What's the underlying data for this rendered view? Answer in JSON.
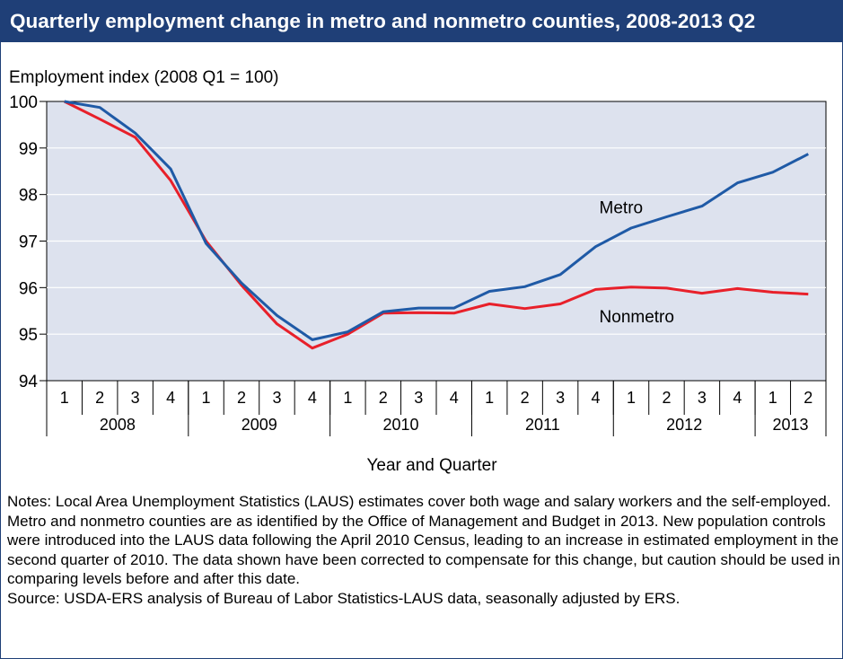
{
  "title": "Quarterly employment change in metro and nonmetro counties, 2008-2013 Q2",
  "notes": "Notes: Local Area Unemployment Statistics (LAUS) estimates cover both wage and salary workers and the self-employed. Metro and nonmetro counties are as identified by the Office of Management and Budget in 2013. New population controls were introduced into the LAUS data following the April 2010 Census, leading to an increase in estimated employment in the second quarter of 2010. The data shown have been corrected to compensate for this change, but caution should be used in comparing levels before and after this date.",
  "source": "Source: USDA-ERS analysis of Bureau of Labor Statistics-LAUS data, seasonally adjusted by ERS.",
  "colors": {
    "title_bg": "#1f3f77",
    "plot_bg": "#dde2ee",
    "metro": "#1f5aa6",
    "nonmetro": "#e8202a"
  },
  "chart_data": {
    "type": "line",
    "ylabel": "Employment index (2008 Q1 = 100)",
    "xlabel": "Year and Quarter",
    "ylim": [
      94,
      100
    ],
    "yticks": [
      94,
      95,
      96,
      97,
      98,
      99,
      100
    ],
    "grid": true,
    "quarters": [
      "1",
      "2",
      "3",
      "4",
      "1",
      "2",
      "3",
      "4",
      "1",
      "2",
      "3",
      "4",
      "1",
      "2",
      "3",
      "4",
      "1",
      "2",
      "3",
      "4",
      "1",
      "2"
    ],
    "years": [
      {
        "label": "2008",
        "count": 4
      },
      {
        "label": "2009",
        "count": 4
      },
      {
        "label": "2010",
        "count": 4
      },
      {
        "label": "2011",
        "count": 4
      },
      {
        "label": "2012",
        "count": 4
      },
      {
        "label": "2013",
        "count": 2
      }
    ],
    "series": [
      {
        "name": "Metro",
        "values": [
          100.0,
          99.87,
          99.32,
          98.55,
          96.95,
          96.1,
          95.4,
          94.88,
          95.05,
          95.48,
          95.56,
          95.56,
          95.92,
          96.02,
          96.28,
          96.88,
          97.28,
          97.52,
          97.75,
          98.25,
          98.48,
          98.87
        ]
      },
      {
        "name": "Nonmetro",
        "values": [
          100.0,
          99.62,
          99.23,
          98.3,
          97.0,
          96.05,
          95.22,
          94.7,
          95.0,
          95.45,
          95.46,
          95.45,
          95.65,
          95.55,
          95.65,
          95.96,
          96.01,
          95.99,
          95.88,
          95.98,
          95.9,
          95.86
        ]
      }
    ]
  }
}
